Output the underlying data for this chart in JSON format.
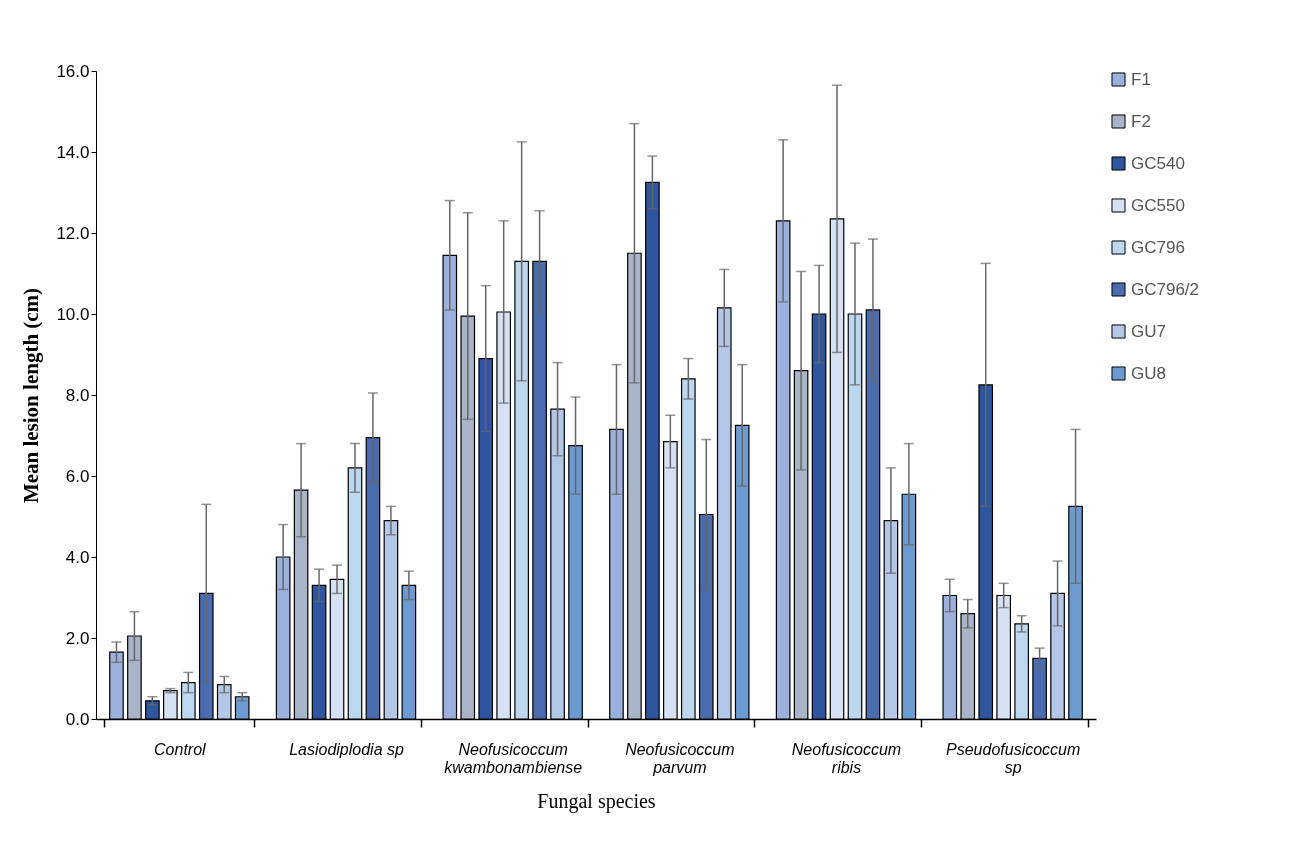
{
  "chart_data": {
    "type": "bar",
    "xlabel": "Fungal species",
    "ylabel": "Mean lesion length (cm)",
    "categories": [
      "Control",
      "Lasiodiplodia sp",
      "Neofusicoccum kwambonambiense",
      "Neofusicoccum parvum",
      "Neofusicoccum ribis",
      "Pseudofusicoccum sp"
    ],
    "series": [
      {
        "name": "F1",
        "color": "#9bb0dc",
        "values": [
          1.65,
          4.0,
          11.45,
          7.15,
          12.3,
          3.05
        ],
        "errors": [
          0.25,
          0.8,
          1.35,
          1.6,
          2.0,
          0.4
        ]
      },
      {
        "name": "F2",
        "color": "#a9b4c8",
        "values": [
          2.05,
          5.65,
          9.95,
          11.5,
          8.6,
          2.6
        ],
        "errors": [
          0.6,
          1.15,
          2.55,
          3.2,
          2.45,
          0.35
        ]
      },
      {
        "name": "GC540",
        "color": "#2f559f",
        "values": [
          0.45,
          3.3,
          8.9,
          13.25,
          10.0,
          8.25
        ],
        "errors": [
          0.1,
          0.4,
          1.8,
          0.65,
          1.2,
          3.0
        ]
      },
      {
        "name": "GC550",
        "color": "#d6e2f4",
        "values": [
          0.7,
          3.45,
          10.05,
          6.85,
          12.35,
          3.05
        ],
        "errors": [
          0.05,
          0.35,
          2.25,
          0.65,
          3.3,
          0.3
        ]
      },
      {
        "name": "GC796",
        "color": "#bdd7ee",
        "values": [
          0.9,
          6.2,
          11.3,
          8.4,
          10.0,
          2.35
        ],
        "errors": [
          0.25,
          0.6,
          2.95,
          0.5,
          1.75,
          0.2
        ]
      },
      {
        "name": "GC796/2",
        "color": "#4a6cae",
        "values": [
          3.1,
          6.95,
          11.3,
          5.05,
          10.1,
          1.5
        ],
        "errors": [
          2.2,
          1.1,
          1.25,
          1.85,
          1.75,
          0.25
        ]
      },
      {
        "name": "GU7",
        "color": "#b4c7e7",
        "values": [
          0.85,
          4.9,
          7.65,
          10.15,
          4.9,
          3.1
        ],
        "errors": [
          0.2,
          0.35,
          1.15,
          0.95,
          1.3,
          0.8
        ]
      },
      {
        "name": "GU8",
        "color": "#6d9bd1",
        "values": [
          0.55,
          3.3,
          6.75,
          7.25,
          5.55,
          5.25
        ],
        "errors": [
          0.1,
          0.35,
          1.2,
          1.5,
          1.25,
          1.9
        ]
      }
    ],
    "ylim": [
      0,
      16
    ],
    "yticks": [
      {
        "value": 0,
        "label": "0.0"
      },
      {
        "value": 2,
        "label": "2.0"
      },
      {
        "value": 4,
        "label": "4.0"
      },
      {
        "value": 6,
        "label": "6.0"
      },
      {
        "value": 8,
        "label": "8.0"
      },
      {
        "value": 10,
        "label": "10.0"
      },
      {
        "value": 12,
        "label": "12.0"
      },
      {
        "value": 14,
        "label": "14.0"
      },
      {
        "value": 16,
        "label": "16.0"
      }
    ],
    "grid": false,
    "legend": "right"
  }
}
